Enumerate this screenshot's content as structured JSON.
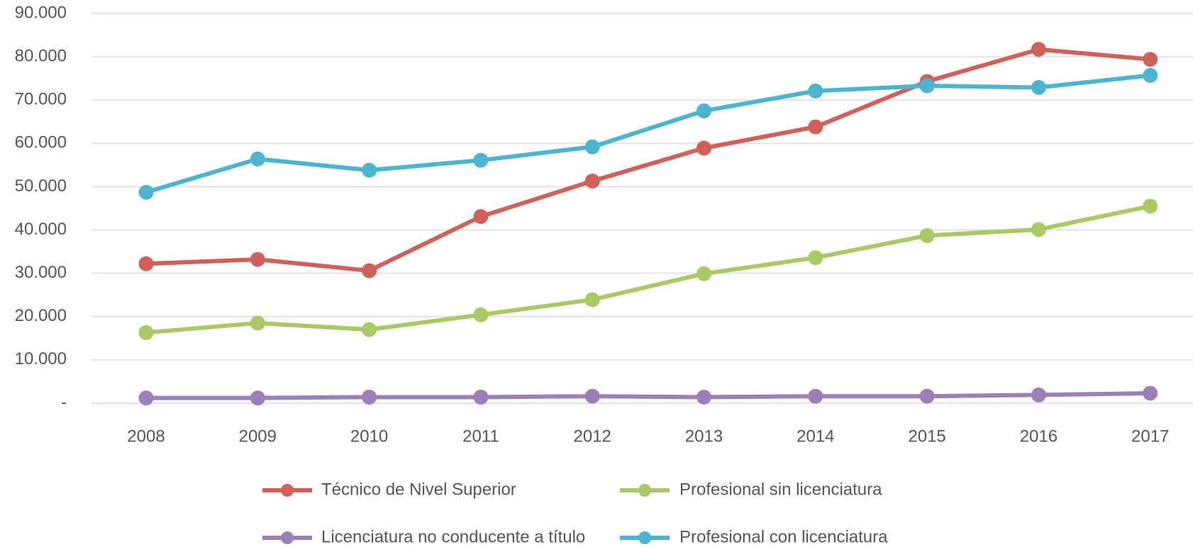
{
  "chart_data": {
    "type": "line",
    "categories": [
      "2008",
      "2009",
      "2010",
      "2011",
      "2012",
      "2013",
      "2014",
      "2015",
      "2016",
      "2017"
    ],
    "series": [
      {
        "name": "Técnico de Nivel Superior",
        "color": "#d0605a",
        "values": [
          32200,
          33200,
          30600,
          43100,
          51300,
          58900,
          63800,
          74300,
          81700,
          79400
        ]
      },
      {
        "name": "Profesional sin licenciatura",
        "color": "#a9c964",
        "values": [
          16300,
          18500,
          17000,
          20400,
          23900,
          29900,
          33600,
          38700,
          40100,
          45500
        ]
      },
      {
        "name": "Licenciatura no conducente a título",
        "color": "#9a7fb8",
        "values": [
          1200,
          1200,
          1400,
          1400,
          1600,
          1400,
          1600,
          1600,
          1900,
          2300
        ]
      },
      {
        "name": "Profesional con licenciatura",
        "color": "#4bb5cf",
        "values": [
          48700,
          56400,
          53800,
          56100,
          59200,
          67500,
          72100,
          73300,
          72900,
          75700
        ]
      }
    ],
    "ylim": [
      0,
      90000
    ],
    "yticks": [
      {
        "value": 0,
        "label": "-"
      },
      {
        "value": 10000,
        "label": "10.000"
      },
      {
        "value": 20000,
        "label": "20.000"
      },
      {
        "value": 30000,
        "label": "30.000"
      },
      {
        "value": 40000,
        "label": "40.000"
      },
      {
        "value": 50000,
        "label": "50.000"
      },
      {
        "value": 60000,
        "label": "60.000"
      },
      {
        "value": 70000,
        "label": "70.000"
      },
      {
        "value": 80000,
        "label": "80.000"
      },
      {
        "value": 90000,
        "label": "90.000"
      }
    ],
    "grid": true,
    "legend": "bottom"
  }
}
